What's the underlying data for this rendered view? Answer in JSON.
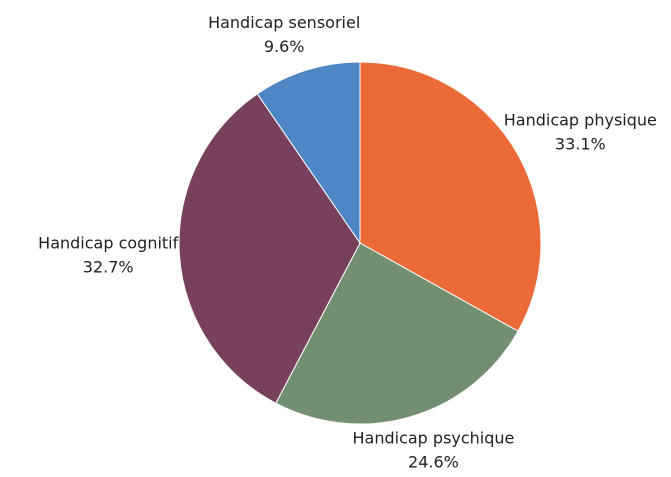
{
  "chart_data": {
    "type": "pie",
    "categories": [
      "Handicap physique",
      "Handicap psychique",
      "Handicap cognitif",
      "Handicap sensoriel"
    ],
    "values": [
      33.1,
      24.6,
      32.7,
      9.6
    ],
    "value_labels": [
      "33.1%",
      "24.6%",
      "32.7%",
      "9.6%"
    ],
    "colors": [
      "#ec6a37",
      "#738f71",
      "#77405c",
      "#4e86c6"
    ]
  }
}
